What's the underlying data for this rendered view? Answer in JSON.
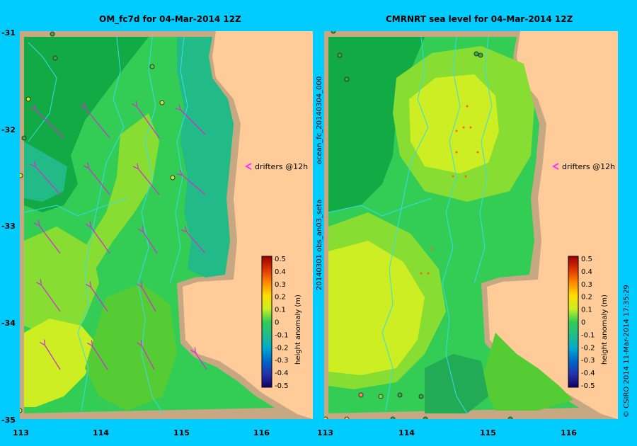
{
  "left_panel": {
    "title": "OM_fc7d for 04-Mar-2014 12Z",
    "drifters_label": "drifters @12h",
    "colorbar_label": "height anomaly (m)"
  },
  "right_panel": {
    "title": "CMRNRT sea level  for 04-Mar-2014 12Z",
    "drifters_label": "drifters @12h",
    "colorbar_label": "height anomaly (m)",
    "side_text_top": "ocean_fc_20140304_000",
    "side_text_bottom": "20140301 obs_an03_seta"
  },
  "copyright": "© CSIRO 2014   11-Mar-2014 17:35:29",
  "lon_ticks": [
    "113",
    "114",
    "115",
    "116"
  ],
  "lat_ticks": [
    "-31",
    "-32",
    "-33",
    "-34",
    "-35"
  ],
  "colorbar_ticks": [
    "0.5",
    "0.4",
    "0.3",
    "0.2",
    "0.1",
    "0",
    "-0.1",
    "-0.2",
    "-0.3",
    "-0.4",
    "-0.5"
  ],
  "colors": {
    "background": "#00ccff",
    "land": "#ffcc99",
    "shelf": "#c8a882",
    "arrow": "#cc33cc"
  }
}
